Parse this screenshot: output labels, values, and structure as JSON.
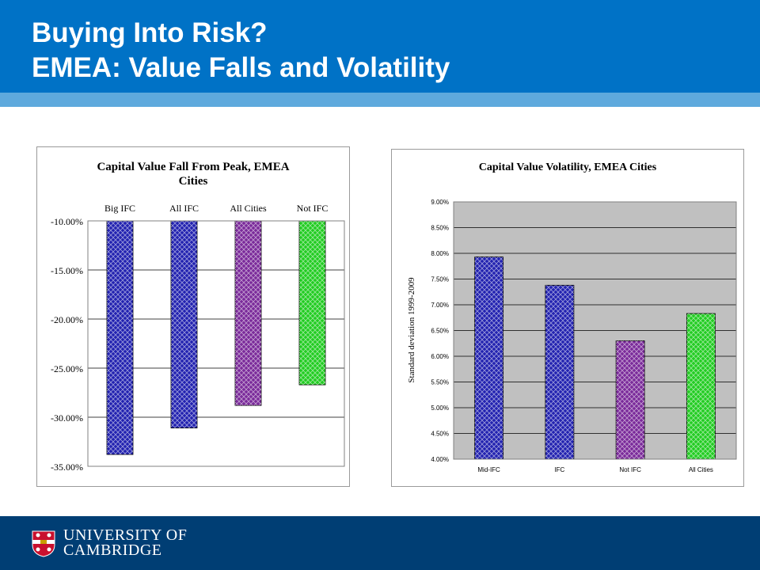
{
  "slide": {
    "title_line1": "Buying Into Risk?",
    "title_line2": "EMEA: Value Falls and Volatility"
  },
  "footer": {
    "logo_line1": "UNIVERSITY OF",
    "logo_line2": "CAMBRIDGE",
    "crest_icon": "university-crest-icon"
  },
  "colors": {
    "header": "#0072c6",
    "header_stripe": "#5ea9dd",
    "footer": "#003e74"
  },
  "chart_data": [
    {
      "type": "bar",
      "title": "Capital Value Fall From Peak, EMEA Cities",
      "categories": [
        "Big IFC",
        "All IFC",
        "All Cities",
        "Not IFC"
      ],
      "values": [
        -33.8,
        -31.1,
        -28.8,
        -26.7
      ],
      "y_ticks": [
        "-10.00%",
        "-15.00%",
        "-20.00%",
        "-25.00%",
        "-30.00%",
        "-35.00%"
      ],
      "ylim": [
        -35,
        -10
      ],
      "xlabel": "",
      "ylabel": "",
      "category_axis_position": "top",
      "grid": true,
      "legend": "none",
      "bar_colors": [
        "#2222b0",
        "#2222b0",
        "#7a2a9a",
        "#22cc22"
      ]
    },
    {
      "type": "bar",
      "title": "Capital Value Volatility, EMEA Cities",
      "categories": [
        "Mid-IFC",
        "IFC",
        "Not IFC",
        "All Cities"
      ],
      "values": [
        7.93,
        7.38,
        6.3,
        6.83
      ],
      "y_ticks": [
        "9.00%",
        "8.50%",
        "8.00%",
        "7.50%",
        "7.00%",
        "6.50%",
        "6.00%",
        "5.50%",
        "5.00%",
        "4.50%",
        "4.00%"
      ],
      "ylim": [
        4,
        9
      ],
      "xlabel": "",
      "ylabel": "Standard deviation 1999-2009",
      "category_axis_position": "bottom",
      "grid": true,
      "legend": "none",
      "plot_background": "#c0c0c0",
      "bar_colors": [
        "#2222b0",
        "#2222b0",
        "#7a2a9a",
        "#22cc22"
      ]
    }
  ]
}
